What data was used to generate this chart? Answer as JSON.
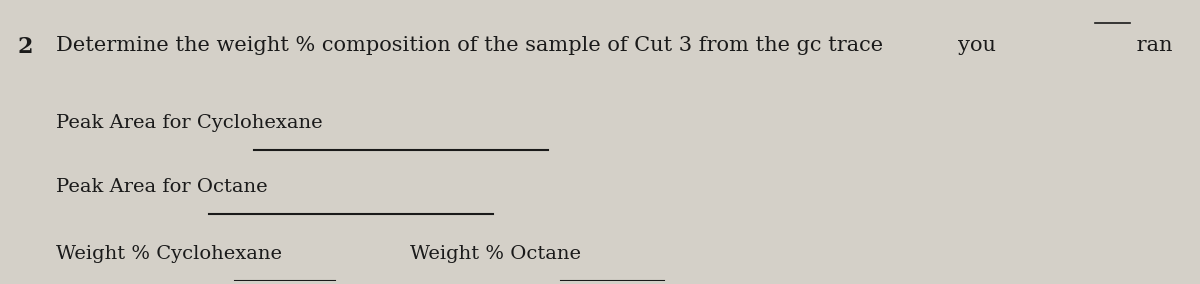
{
  "background_color": "#d4d0c8",
  "number": "2",
  "title_part1": "Determine the weight % composition of the sample of Cut 3 from the gc trace ",
  "title_part2": "you",
  "title_part3": " ran",
  "line1_label": "Peak Area for Cyclohexane",
  "line2_label": "Peak Area for Octane",
  "line3a_label": "Weight % Cyclohexane",
  "line3b_label": "Weight % Octane",
  "text_color": "#1a1a1a",
  "line_color": "#1a1a1a",
  "font_size_title": 15,
  "font_size_body": 14,
  "number_font_size": 16
}
